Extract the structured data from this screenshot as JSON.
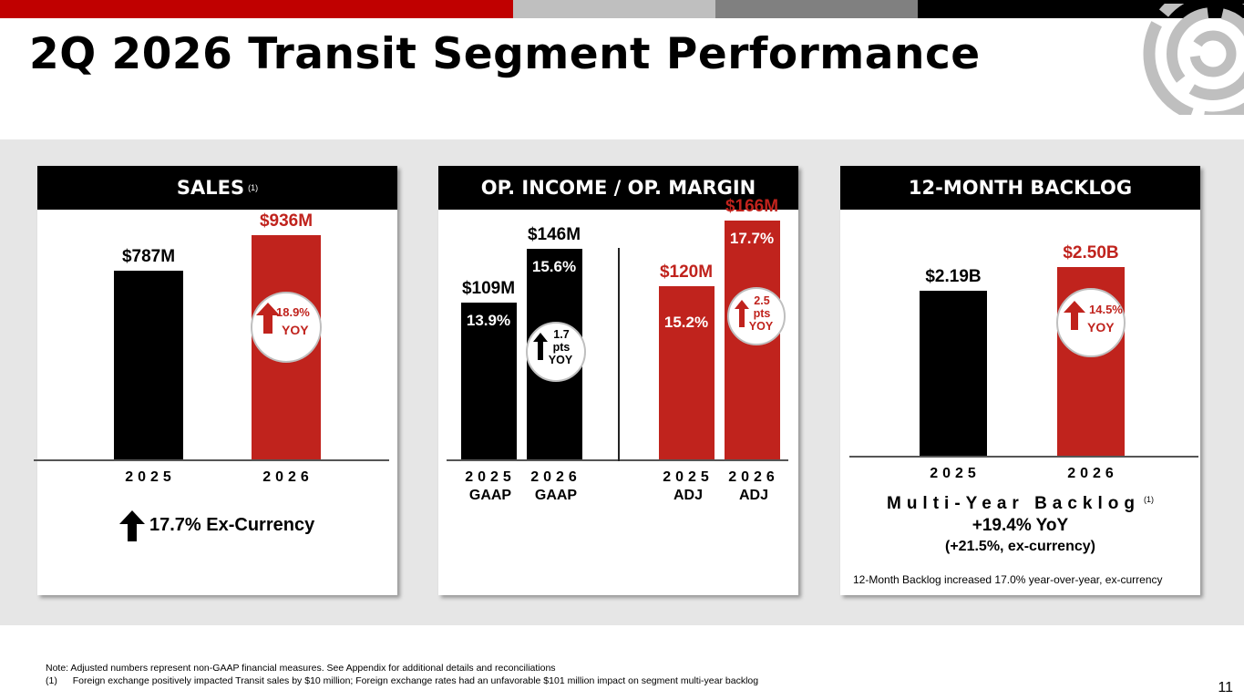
{
  "title": "2Q 2026 Transit Segment Performance",
  "page_number": "11",
  "colors": {
    "accent_red": "#c0231d",
    "black": "#000000",
    "band_gray": "#e6e6e6"
  },
  "sales": {
    "header": "SALES",
    "header_sup": "(1)",
    "ex_currency": "17.7% Ex-Currency",
    "yoy_pct": "18.9%",
    "yoy_label": "YOY"
  },
  "opincome": {
    "header": "OP. INCOME / OP. MARGIN",
    "gaap_change": {
      "value": "1.7",
      "unit": "pts",
      "label": "YOY"
    },
    "adj_change": {
      "value": "2.5",
      "unit": "pts",
      "label": "YOY"
    }
  },
  "backlog": {
    "header": "12-MONTH BACKLOG",
    "multi_year_title": "Multi-Year Backlog",
    "multi_year_sup": "(1)",
    "multi_year_yoy": "+19.4% YoY",
    "multi_year_excur": "(+21.5%, ex-currency)",
    "footnote": "12-Month Backlog increased 17.0% year-over-year, ex-currency",
    "yoy_pct": "14.5%",
    "yoy_label": "YOY"
  },
  "notes": {
    "line1": "Note: Adjusted numbers represent non-GAAP financial measures. See Appendix for additional details and reconciliations",
    "line2_num": "(1)",
    "line2": "Foreign exchange positively impacted Transit sales by $10 million; Foreign exchange rates had an unfavorable $101 million impact on segment multi-year backlog"
  },
  "chart_data": [
    {
      "type": "bar",
      "title": "SALES",
      "categories": [
        "2025",
        "2026"
      ],
      "values": [
        787,
        936
      ],
      "value_labels": [
        "$787M",
        "$936M"
      ],
      "unit": "$M",
      "bar_colors": [
        "#000000",
        "#c0231d"
      ]
    },
    {
      "type": "bar",
      "title": "OP. INCOME / OP. MARGIN",
      "categories": [
        "2025 GAAP",
        "2026 GAAP",
        "2025 ADJ",
        "2026 ADJ"
      ],
      "category_lines": [
        [
          "2025",
          "GAAP"
        ],
        [
          "2026",
          "GAAP"
        ],
        [
          "2025",
          "ADJ"
        ],
        [
          "2026",
          "ADJ"
        ]
      ],
      "values": [
        109,
        146,
        120,
        166
      ],
      "value_labels": [
        "$109M",
        "$146M",
        "$120M",
        "$166M"
      ],
      "margins": [
        "13.9%",
        "15.6%",
        "15.2%",
        "17.7%"
      ],
      "unit": "$M",
      "bar_colors": [
        "#000000",
        "#000000",
        "#c0231d",
        "#c0231d"
      ]
    },
    {
      "type": "bar",
      "title": "12-MONTH BACKLOG",
      "categories": [
        "2025",
        "2026"
      ],
      "values": [
        2.19,
        2.5
      ],
      "value_labels": [
        "$2.19B",
        "$2.50B"
      ],
      "unit": "$B",
      "bar_colors": [
        "#000000",
        "#c0231d"
      ]
    }
  ]
}
